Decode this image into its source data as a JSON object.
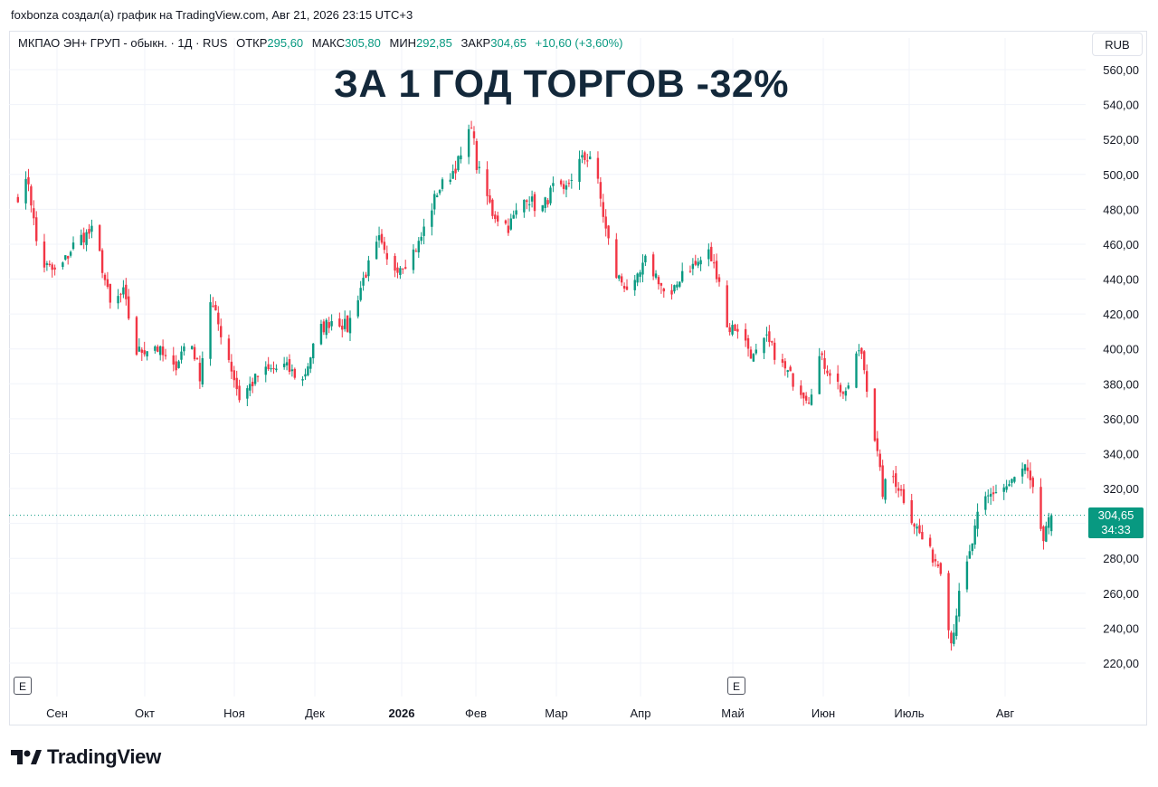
{
  "credit": "foxbonza создал(а) график на TradingView.com, Авг 21, 2026 23:15 UTC+3",
  "legend": {
    "symbol": "МКПАО ЭН+ ГРУП - обыкн. · 1Д · RUS",
    "open_label": "ОТКР",
    "open": "295,60",
    "high_label": "МАКС",
    "high": "305,80",
    "low_label": "МИН",
    "low": "292,85",
    "close_label": "ЗАКР",
    "close": "304,65",
    "change": "+10,60 (+3,60%)"
  },
  "currency_button": "RUB",
  "headline": "ЗА 1 ГОД ТОРГОВ -32%",
  "price_tag": {
    "price": "304,65",
    "countdown": "34:33"
  },
  "earnings_badge": "E",
  "brand": "TradingView",
  "colors": {
    "up": "#089981",
    "down": "#f23645",
    "grid": "#f0f3fa",
    "text": "#131722"
  },
  "chart_data": {
    "type": "candlestick",
    "title": "ЗА 1 ГОД ТОРГОВ -32%",
    "y_ticks": [
      220,
      240,
      260,
      280,
      300,
      320,
      340,
      360,
      380,
      400,
      420,
      440,
      460,
      480,
      500,
      520,
      540,
      560
    ],
    "y_tick_labels": [
      "220,00",
      "240,00",
      "260,00",
      "280,00",
      "300,00",
      "320,00",
      "340,00",
      "360,00",
      "380,00",
      "400,00",
      "420,00",
      "440,00",
      "460,00",
      "480,00",
      "500,00",
      "520,00",
      "540,00",
      "560,00"
    ],
    "x_labels": [
      "Сен",
      "Окт",
      "Ноя",
      "Дек",
      "2026",
      "Фев",
      "Мар",
      "Апр",
      "Май",
      "Июн",
      "Июль",
      "Авг"
    ],
    "ylim": [
      213,
      575
    ],
    "last_price": 304.65,
    "close_path": [
      {
        "date": "2025-08-22",
        "close": 488
      },
      {
        "date": "2025-08-26",
        "close": 496
      },
      {
        "date": "2025-08-30",
        "close": 450
      },
      {
        "date": "2025-09-06",
        "close": 443
      },
      {
        "date": "2025-09-13",
        "close": 462
      },
      {
        "date": "2025-09-20",
        "close": 468
      },
      {
        "date": "2025-09-26",
        "close": 425
      },
      {
        "date": "2025-10-01",
        "close": 432
      },
      {
        "date": "2025-10-06",
        "close": 398
      },
      {
        "date": "2025-10-13",
        "close": 402
      },
      {
        "date": "2025-10-20",
        "close": 388
      },
      {
        "date": "2025-10-26",
        "close": 408
      },
      {
        "date": "2025-10-30",
        "close": 385
      },
      {
        "date": "2025-11-03",
        "close": 428
      },
      {
        "date": "2025-11-09",
        "close": 400
      },
      {
        "date": "2025-11-14",
        "close": 372
      },
      {
        "date": "2025-11-22",
        "close": 386
      },
      {
        "date": "2025-12-01",
        "close": 390
      },
      {
        "date": "2025-12-08",
        "close": 382
      },
      {
        "date": "2025-12-14",
        "close": 410
      },
      {
        "date": "2025-12-20",
        "close": 418
      },
      {
        "date": "2025-12-25",
        "close": 412
      },
      {
        "date": "2025-12-31",
        "close": 440
      },
      {
        "date": "2026-01-06",
        "close": 462
      },
      {
        "date": "2026-01-10",
        "close": 445
      },
      {
        "date": "2026-01-16",
        "close": 450
      },
      {
        "date": "2026-01-21",
        "close": 460
      },
      {
        "date": "2026-01-28",
        "close": 490
      },
      {
        "date": "2026-02-03",
        "close": 502
      },
      {
        "date": "2026-02-08",
        "close": 515
      },
      {
        "date": "2026-02-10",
        "close": 530
      },
      {
        "date": "2026-02-12",
        "close": 505
      },
      {
        "date": "2026-02-18",
        "close": 478
      },
      {
        "date": "2026-02-24",
        "close": 470
      },
      {
        "date": "2026-03-03",
        "close": 488
      },
      {
        "date": "2026-03-08",
        "close": 478
      },
      {
        "date": "2026-03-14",
        "close": 495
      },
      {
        "date": "2026-03-17",
        "close": 488
      },
      {
        "date": "2026-03-22",
        "close": 506
      },
      {
        "date": "2026-03-28",
        "close": 512
      },
      {
        "date": "2026-04-02",
        "close": 468
      },
      {
        "date": "2026-04-06",
        "close": 442
      },
      {
        "date": "2026-04-12",
        "close": 432
      },
      {
        "date": "2026-04-17",
        "close": 450
      },
      {
        "date": "2026-04-22",
        "close": 440
      },
      {
        "date": "2026-04-26",
        "close": 425
      },
      {
        "date": "2026-05-01",
        "close": 445
      },
      {
        "date": "2026-05-06",
        "close": 448
      },
      {
        "date": "2026-05-11",
        "close": 455
      },
      {
        "date": "2026-05-15",
        "close": 440
      },
      {
        "date": "2026-05-17",
        "close": 412
      },
      {
        "date": "2026-05-22",
        "close": 412
      },
      {
        "date": "2026-05-28",
        "close": 395
      },
      {
        "date": "2026-06-02",
        "close": 405
      },
      {
        "date": "2026-06-08",
        "close": 390
      },
      {
        "date": "2026-06-14",
        "close": 378
      },
      {
        "date": "2026-06-18",
        "close": 372
      },
      {
        "date": "2026-06-22",
        "close": 395
      },
      {
        "date": "2026-06-27",
        "close": 385
      },
      {
        "date": "2026-07-02",
        "close": 372
      },
      {
        "date": "2026-07-05",
        "close": 395
      },
      {
        "date": "2026-07-08",
        "close": 398
      },
      {
        "date": "2026-07-12",
        "close": 360
      },
      {
        "date": "2026-07-16",
        "close": 318
      },
      {
        "date": "2026-07-19",
        "close": 330
      },
      {
        "date": "2026-07-23",
        "close": 318
      },
      {
        "date": "2026-07-28",
        "close": 300
      },
      {
        "date": "2026-08-02",
        "close": 285
      },
      {
        "date": "2026-08-07",
        "close": 275
      },
      {
        "date": "2026-08-11",
        "close": 232
      },
      {
        "date": "2026-08-14",
        "close": 258
      },
      {
        "date": "2026-08-18",
        "close": 282
      },
      {
        "date": "2026-08-22",
        "close": 310
      },
      {
        "date": "2026-08-27",
        "close": 318
      },
      {
        "date": "2026-09-02",
        "close": 322
      },
      {
        "date": "2026-09-08",
        "close": 332
      },
      {
        "date": "2026-09-12",
        "close": 312
      },
      {
        "date": "2026-09-15",
        "close": 290
      },
      {
        "date": "2026-09-18",
        "close": 304.65
      }
    ]
  }
}
